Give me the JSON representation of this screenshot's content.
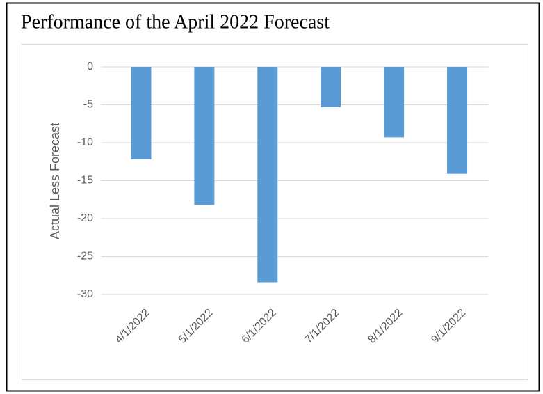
{
  "chart_data": {
    "type": "bar",
    "title": "Performance of the April 2022 Forecast",
    "y_label": "Actual Less Forecast",
    "categories": [
      "4/1/2022",
      "5/1/2022",
      "6/1/2022",
      "7/1/2022",
      "8/1/2022",
      "9/1/2022"
    ],
    "values": [
      -12.2,
      -18.2,
      -28.4,
      -5.3,
      -9.3,
      -14.1
    ],
    "color": "#5b9bd5",
    "ylim": [
      -30,
      0
    ],
    "yticks": [
      0,
      -5,
      -10,
      -15,
      -20,
      -25,
      -30
    ],
    "grid": true
  }
}
